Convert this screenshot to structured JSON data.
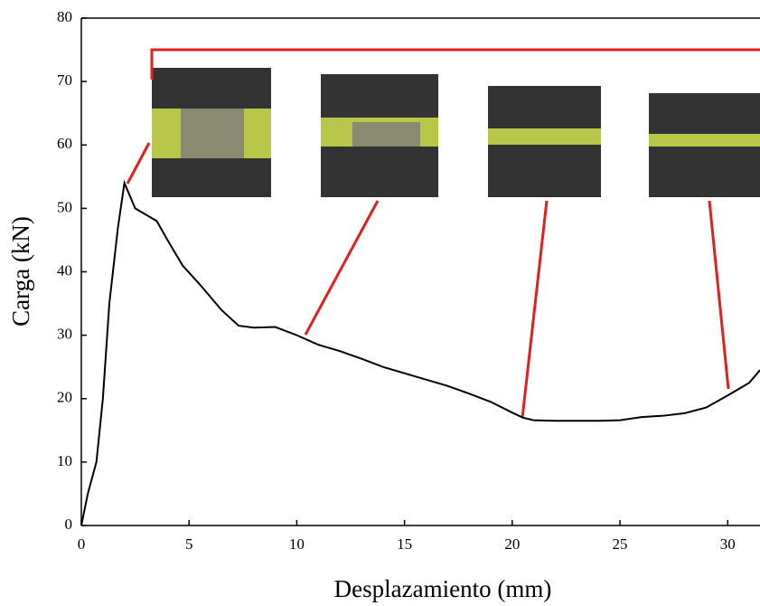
{
  "chart_data": {
    "type": "line",
    "x_label": "Desplazamiento (mm)",
    "y_label": "Carga (kN)",
    "color": "#000000",
    "x": [
      0,
      0.3,
      0.7,
      1.0,
      1.3,
      1.7,
      2.0,
      2.5,
      3,
      3.5,
      4,
      4.7,
      5.5,
      6.5,
      7.3,
      8,
      9,
      10,
      11,
      12,
      13,
      14,
      15,
      16,
      17,
      18,
      19,
      20,
      20.5,
      21,
      22,
      23,
      24,
      25,
      26,
      27,
      28,
      29,
      30,
      31,
      31.5
    ],
    "values": [
      0,
      5,
      10,
      20,
      35,
      47,
      54,
      50,
      49,
      48,
      45,
      41,
      38,
      34,
      31.5,
      31.2,
      31.3,
      30,
      28.5,
      27.5,
      26.3,
      25,
      24,
      23,
      22,
      20.8,
      19.5,
      17.8,
      17,
      16.6,
      16.5,
      16.5,
      16.5,
      16.6,
      17.1,
      17.3,
      17.7,
      18.6,
      20.5,
      22.5,
      24.5
    ],
    "xlim": [
      0,
      31.5
    ],
    "xticks": [
      0,
      5,
      10,
      15,
      20,
      25,
      30
    ],
    "ylim": [
      0,
      80
    ],
    "yticks": [
      0,
      10,
      20,
      30,
      40,
      50,
      60,
      70,
      80
    ]
  }
}
